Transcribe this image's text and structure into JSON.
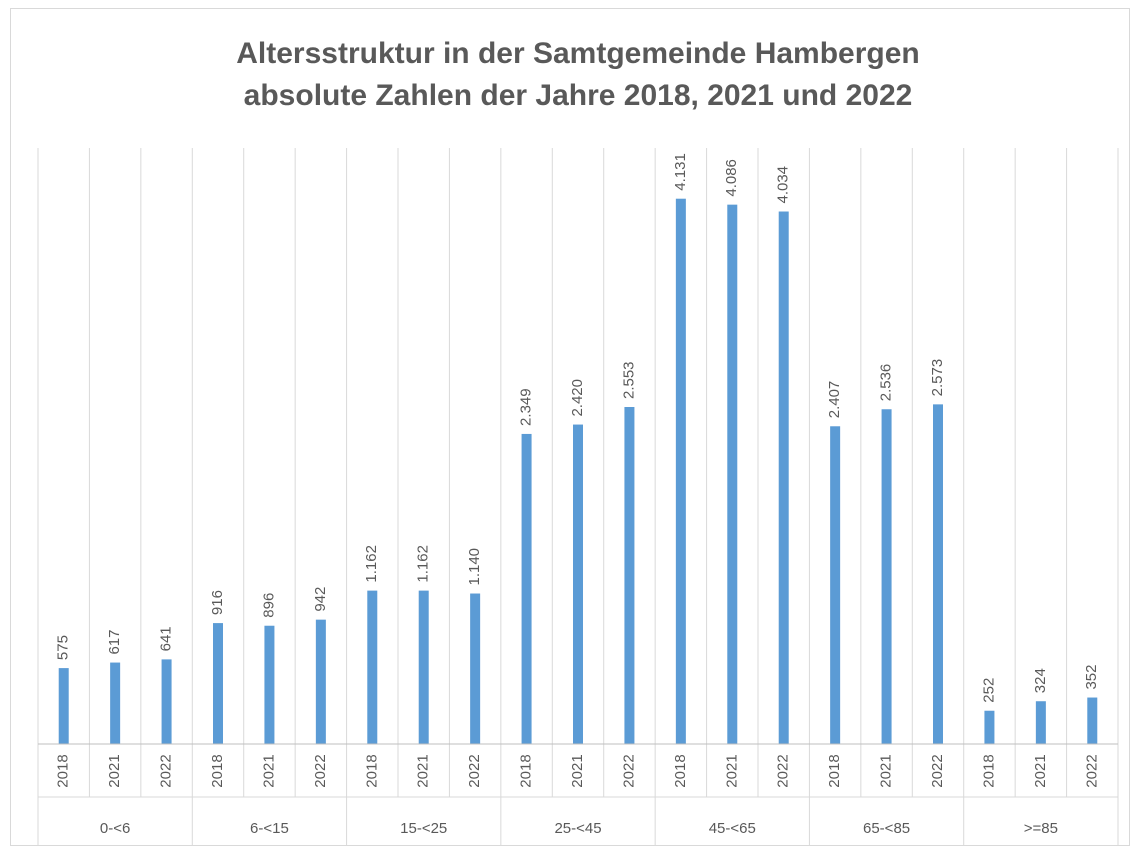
{
  "chart_data": {
    "type": "bar",
    "title": "Altersstruktur in der Samtgemeinde Hambergen",
    "subtitle": "absolute Zahlen der Jahre 2018, 2021 und 2022",
    "color": "#5b9bd5",
    "ylim": [
      0,
      4500
    ],
    "groups": [
      {
        "name": "0-<6",
        "categories": [
          "2018",
          "2021",
          "2022"
        ],
        "values": [
          575,
          617,
          641
        ],
        "value_labels": [
          "575",
          "617",
          "641"
        ]
      },
      {
        "name": "6-<15",
        "categories": [
          "2018",
          "2021",
          "2022"
        ],
        "values": [
          916,
          896,
          942
        ],
        "value_labels": [
          "916",
          "896",
          "942"
        ]
      },
      {
        "name": "15-<25",
        "categories": [
          "2018",
          "2021",
          "2022"
        ],
        "values": [
          1162,
          1162,
          1140
        ],
        "value_labels": [
          "1.162",
          "1.162",
          "1.140"
        ]
      },
      {
        "name": "25-<45",
        "categories": [
          "2018",
          "2021",
          "2022"
        ],
        "values": [
          2349,
          2420,
          2553
        ],
        "value_labels": [
          "2.349",
          "2.420",
          "2.553"
        ]
      },
      {
        "name": "45-<65",
        "categories": [
          "2018",
          "2021",
          "2022"
        ],
        "values": [
          4131,
          4086,
          4034
        ],
        "value_labels": [
          "4.131",
          "4.086",
          "4.034"
        ]
      },
      {
        "name": "65-<85",
        "categories": [
          "2018",
          "2021",
          "2022"
        ],
        "values": [
          2407,
          2536,
          2573
        ],
        "value_labels": [
          "2.407",
          "2.536",
          "2.573"
        ]
      },
      {
        "name": ">=85",
        "categories": [
          "2018",
          "2021",
          "2022"
        ],
        "values": [
          252,
          324,
          352
        ],
        "value_labels": [
          "252",
          "324",
          "352"
        ]
      }
    ]
  }
}
